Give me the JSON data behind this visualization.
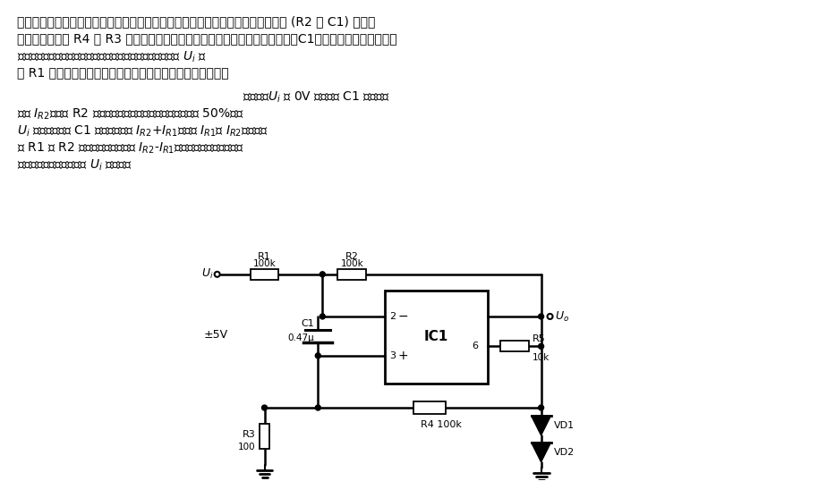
{
  "bg_color": "#ffffff",
  "text_color": "#000000",
  "line1": "本电路由无稳态多谐振荡器构成脉冲宽度调制器。在无稳态多谐振荡器中，积分器 (R2 和 C1) 构成负",
  "line2": "反馈回路，电阻 R4 和 R3 构成正反馈回路。由于正反馈量比较小，定时电容器C1的充、放电所建立的电压",
  "line3": "只有几个毫伏。如果将直流电压或比振荡频率低的调制信号 $U_i$ 通",
  "line4": "过 R1 输入到比较器的反相输入端，即可实现脉冲宽度调制。",
  "line5": "输入电压$U_i$ 为 0V 时，电容 C1 充、放电",
  "line6": "电流 $I_{R2}$（流经 R2 的电流）是相等的，因此占空比因数为 50%。当",
  "line7": "$U_i$ 为正时，电容 C1 的充电电流是 $I_{R2}$+$I_{R1}$，其中 $I_{R1}$和 $I_{R2}$分别为流",
  "line8": "经 R1 和 R2 的电流。放电电流是 $I_{R2}$-$I_{R1}$，这样就改变了输出的占",
  "line9": "空比因数，占空因数是和 $U_i$ 成反比。"
}
